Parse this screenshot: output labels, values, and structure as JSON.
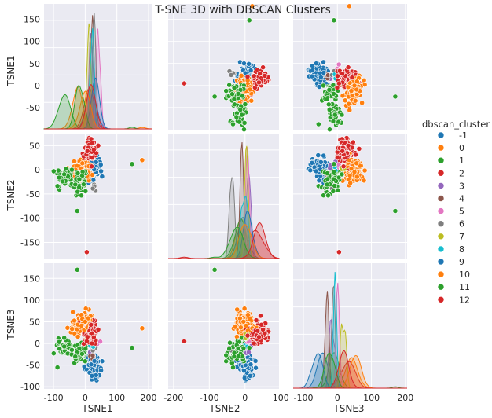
{
  "chart_data": {
    "type": "scatter",
    "title": "T-SNE 3D with DBSCAN Clusters",
    "variables": [
      "TSNE1",
      "TSNE2",
      "TSNE3"
    ],
    "legend": {
      "title": "dbscan_cluster",
      "placement": "right",
      "entries": [
        {
          "label": "-1",
          "color": "#1f77b4"
        },
        {
          "label": "0",
          "color": "#ff7f0e"
        },
        {
          "label": "1",
          "color": "#2ca02c"
        },
        {
          "label": "2",
          "color": "#d62728"
        },
        {
          "label": "3",
          "color": "#9467bd"
        },
        {
          "label": "4",
          "color": "#8c564b"
        },
        {
          "label": "5",
          "color": "#e377c2"
        },
        {
          "label": "6",
          "color": "#7f7f7f"
        },
        {
          "label": "7",
          "color": "#bcbd22"
        },
        {
          "label": "8",
          "color": "#17becf"
        },
        {
          "label": "9",
          "color": "#1f77b4"
        },
        {
          "label": "10",
          "color": "#ff7f0e"
        },
        {
          "label": "11",
          "color": "#2ca02c"
        },
        {
          "label": "12",
          "color": "#d62728"
        }
      ]
    },
    "axes": {
      "TSNE1": {
        "label": "TSNE1",
        "ticks": [
          -100,
          0,
          100,
          200
        ],
        "range": [
          -130,
          210
        ],
        "ylim": [
          -100,
          185
        ],
        "yticks": [
          -50,
          0,
          50,
          100,
          150
        ]
      },
      "TSNE2": {
        "label": "TSNE2",
        "ticks": [
          -200,
          -100,
          0,
          100
        ],
        "range": [
          -215,
          95
        ],
        "ylim": [
          -185,
          75
        ],
        "yticks": [
          -150,
          -100,
          -50,
          0,
          50
        ]
      },
      "TSNE3": {
        "label": "TSNE3",
        "ticks": [
          -100,
          0,
          100,
          200
        ],
        "range": [
          -130,
          205
        ],
        "ylim": [
          -105,
          185
        ],
        "yticks": [
          -100,
          -50,
          0,
          50,
          100,
          150
        ]
      }
    },
    "clusters": [
      {
        "label": "-1",
        "color": "#1f77b4",
        "center": [
          20,
          -5,
          -45
        ],
        "spread": [
          12,
          12,
          12
        ],
        "n": 40
      },
      {
        "label": "0",
        "color": "#ff7f0e",
        "center": [
          -25,
          -10,
          40
        ],
        "spread": [
          12,
          12,
          14
        ],
        "n": 45
      },
      {
        "label": "1",
        "color": "#2ca02c",
        "center": [
          -65,
          -15,
          -5
        ],
        "spread": [
          14,
          12,
          12
        ],
        "n": 45
      },
      {
        "label": "2",
        "color": "#d62728",
        "center": [
          10,
          30,
          30
        ],
        "spread": [
          12,
          15,
          14
        ],
        "n": 40
      },
      {
        "label": "3",
        "color": "#9467bd",
        "center": [
          20,
          5,
          -15
        ],
        "spread": [
          5,
          5,
          5
        ],
        "n": 4
      },
      {
        "label": "4",
        "color": "#8c564b",
        "center": [
          25,
          -10,
          -30
        ],
        "spread": [
          5,
          5,
          5
        ],
        "n": 4
      },
      {
        "label": "5",
        "color": "#e377c2",
        "center": [
          40,
          5,
          0
        ],
        "spread": [
          5,
          5,
          5
        ],
        "n": 3
      },
      {
        "label": "6",
        "color": "#7f7f7f",
        "center": [
          30,
          -35,
          -10
        ],
        "spread": [
          5,
          5,
          5
        ],
        "n": 4
      },
      {
        "label": "7",
        "color": "#bcbd22",
        "center": [
          15,
          5,
          20
        ],
        "spread": [
          5,
          5,
          5
        ],
        "n": 4
      },
      {
        "label": "8",
        "color": "#17becf",
        "center": [
          25,
          0,
          -10
        ],
        "spread": [
          5,
          5,
          5
        ],
        "n": 3
      },
      {
        "label": "9",
        "color": "#1f77b4",
        "center": [
          35,
          10,
          -60
        ],
        "spread": [
          10,
          10,
          10
        ],
        "n": 40
      },
      {
        "label": "10",
        "color": "#ff7f0e",
        "center": [
          0,
          0,
          50
        ],
        "spread": [
          12,
          12,
          12
        ],
        "n": 40
      },
      {
        "label": "11",
        "color": "#2ca02c",
        "center": [
          -20,
          -25,
          -20
        ],
        "spread": [
          10,
          12,
          10
        ],
        "n": 40
      },
      {
        "label": "12",
        "color": "#d62728",
        "center": [
          20,
          40,
          20
        ],
        "spread": [
          12,
          12,
          12
        ],
        "n": 40
      }
    ],
    "outliers": [
      {
        "cluster": "10",
        "color": "#ff7f0e",
        "values": [
          180,
          20,
          35
        ]
      },
      {
        "cluster": "11",
        "color": "#2ca02c",
        "values": [
          148,
          12,
          -10
        ]
      },
      {
        "cluster": "11",
        "color": "#2ca02c",
        "values": [
          -25,
          -85,
          170
        ]
      },
      {
        "cluster": "12",
        "color": "#d62728",
        "values": [
          5,
          -170,
          5
        ]
      }
    ],
    "grid": true
  }
}
